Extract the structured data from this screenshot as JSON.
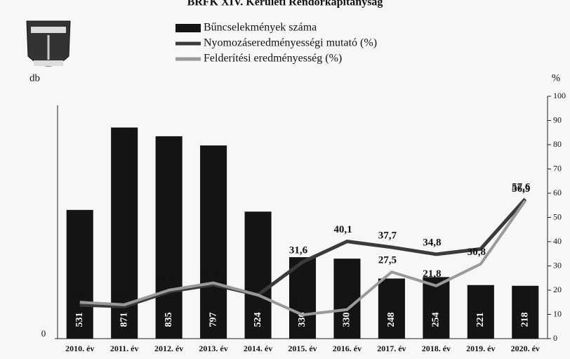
{
  "chart_data": {
    "type": "combo",
    "title": "BRFK XIV. Kerületi Rendőrkapitányság",
    "y_label": "db",
    "y2_label": "%",
    "categories": [
      "2010. év",
      "2011. év",
      "2012. év",
      "2013. év",
      "2014. év",
      "2015. év",
      "2016. év",
      "2017. év",
      "2018. év",
      "2019. év",
      "2020. év"
    ],
    "series": [
      {
        "name": "Bűncselekmények száma",
        "type": "bar",
        "axis": "y",
        "color": "#141414",
        "values": [
          531,
          871,
          835,
          797,
          524,
          336,
          330,
          248,
          254,
          221,
          218
        ]
      },
      {
        "name": "Nyomozáseredményességi mutató (%)",
        "type": "line",
        "axis": "y2",
        "color": "#3a3a3a",
        "values": [
          13.9,
          13.3,
          19.4,
          22.3,
          18,
          31.6,
          40.1,
          37.7,
          34.8,
          37,
          57.6
        ],
        "value_labels": [
          "13,9",
          "13,3",
          "19,4",
          "22,3",
          null,
          "31,6",
          "40,1",
          "37,7",
          "34,8",
          null,
          "57,6"
        ]
      },
      {
        "name": "Felderítési eredményesség (%)",
        "type": "line",
        "axis": "y2",
        "color": "#9a9a9a",
        "values": [
          15,
          14,
          20,
          23,
          18,
          9.8,
          12,
          27.5,
          21.8,
          30.8,
          56.9
        ],
        "value_labels": [
          null,
          null,
          null,
          null,
          null,
          "9,8",
          null,
          "27,5",
          "21,8",
          "30,8",
          "56,9"
        ]
      }
    ],
    "ylim": [
      0,
      1000
    ],
    "yticks": [
      0
    ],
    "y2lim": [
      0,
      100
    ],
    "y2ticks": [
      0,
      10,
      20,
      30,
      40,
      50,
      60,
      70,
      80,
      90,
      100
    ]
  }
}
